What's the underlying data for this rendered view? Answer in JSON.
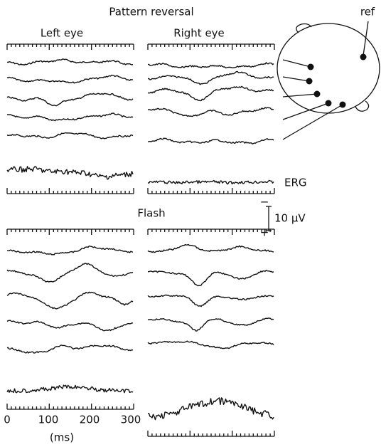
{
  "title": "Pattern reversal",
  "panels": {
    "left": "Left eye",
    "right": "Right eye"
  },
  "head": {
    "reference": "ref"
  },
  "erg_label": "ERG",
  "flash_title": "Flash",
  "scale_bar": {
    "label": "10 μV",
    "top": "−",
    "bottom": "+"
  },
  "time_axis": {
    "ticks": [
      "0",
      "100",
      "200",
      "300"
    ],
    "unit": "(ms)"
  }
}
